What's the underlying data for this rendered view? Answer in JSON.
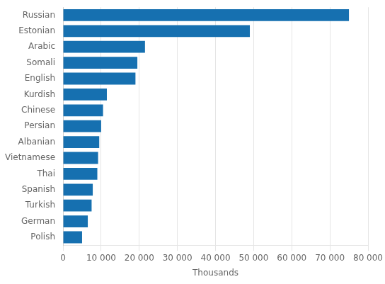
{
  "chart_data": {
    "type": "bar",
    "orientation": "horizontal",
    "xlabel": "Thousands",
    "categories": [
      "Polish",
      "German",
      "Turkish",
      "Spanish",
      "Thai",
      "Vietnamese",
      "Albanian",
      "Persian",
      "Chinese",
      "Kurdish",
      "English",
      "Somali",
      "Arabic",
      "Estonian",
      "Russian"
    ],
    "values": [
      5000,
      6500,
      7500,
      7800,
      9000,
      9200,
      9500,
      10000,
      10500,
      11500,
      19000,
      19500,
      21500,
      49000,
      75000
    ],
    "color": "#1670b0",
    "xlim": [
      0,
      80000
    ],
    "xticks": [
      0,
      {
        "value": 10000,
        "label": "10 000"
      },
      {
        "value": 20000,
        "label": "20 000"
      },
      {
        "value": 30000,
        "label": "30 000"
      },
      {
        "value": 40000,
        "label": "40 000"
      },
      {
        "value": 50000,
        "label": "50 000"
      },
      {
        "value": 60000,
        "label": "60 000"
      },
      {
        "value": 70000,
        "label": "70 000"
      },
      {
        "value": 80000,
        "label": "80 000"
      }
    ],
    "grid": true
  }
}
